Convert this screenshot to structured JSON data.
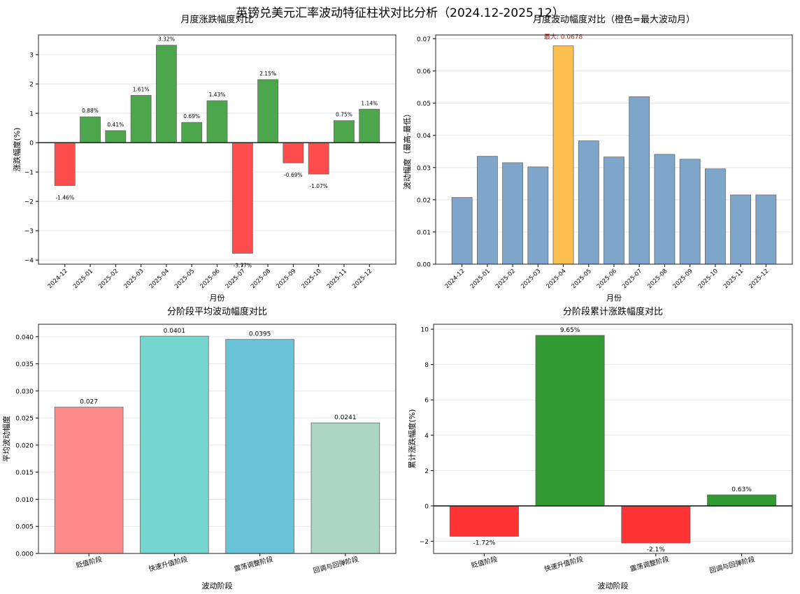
{
  "suptitle": "英镑兑美元汇率波动特征柱状对比分析（2024.12-2025.12）",
  "chart_data": [
    {
      "type": "bar",
      "title": "月度涨跌幅度对比",
      "xlabel": "月份",
      "ylabel": "涨跌幅度(%)",
      "categories": [
        "2024-12",
        "2025-01",
        "2025-02",
        "2025-03",
        "2025-04",
        "2025-05",
        "2025-06",
        "2025-07",
        "2025-08",
        "2025-09",
        "2025-10",
        "2025-11",
        "2025-12"
      ],
      "values": [
        -1.46,
        0.88,
        0.41,
        1.61,
        3.32,
        0.69,
        1.43,
        -3.77,
        2.15,
        -0.69,
        -1.07,
        0.75,
        1.14
      ],
      "data_labels": [
        "-1.46%",
        "0.88%",
        "0.41%",
        "1.61%",
        "3.32%",
        "0.69%",
        "1.43%",
        "-3.77%",
        "2.15%",
        "-0.69%",
        "-1.07%",
        "0.75%",
        "1.14%"
      ],
      "ylim": [
        -4.14,
        3.67
      ],
      "yticks": [
        -4,
        -3,
        -2,
        -1,
        0,
        1,
        2,
        3
      ],
      "tick_rotation": 45,
      "grid": "y",
      "zero_line": true,
      "colors": {
        "positive": "#4ca64c",
        "negative": "#ff4d4d"
      }
    },
    {
      "type": "bar",
      "title": "月度波动幅度对比（橙色=最大波动月）",
      "xlabel": "月份",
      "ylabel": "波动幅度（最高-最低）",
      "categories": [
        "2024-12",
        "2025-01",
        "2025-02",
        "2025-03",
        "2025-04",
        "2025-05",
        "2025-06",
        "2025-07",
        "2025-08",
        "2025-09",
        "2025-10",
        "2025-11",
        "2025-12"
      ],
      "values": [
        0.0207,
        0.0335,
        0.0315,
        0.0302,
        0.0678,
        0.0383,
        0.0333,
        0.052,
        0.0341,
        0.0326,
        0.0296,
        0.0215,
        0.0215
      ],
      "annotation": "最大: 0.0678",
      "highlight_index": 4,
      "ylim": [
        0,
        0.0712
      ],
      "yticks": [
        "0.00",
        "0.01",
        "0.02",
        "0.03",
        "0.04",
        "0.05",
        "0.06",
        "0.07"
      ],
      "tick_rotation": 45,
      "grid": "y",
      "colors": {
        "default": "#7ea6cb",
        "highlight": "#fdbf4f",
        "annotation": "#b22222"
      }
    },
    {
      "type": "bar",
      "title": "分阶段平均波动幅度对比",
      "xlabel": "波动阶段",
      "ylabel": "平均波动幅度",
      "categories": [
        "贬值阶段",
        "快速升值阶段",
        "震荡调整阶段",
        "回调与回弹阶段"
      ],
      "values": [
        0.027,
        0.0401,
        0.0395,
        0.0241
      ],
      "data_labels": [
        "0.027",
        "0.0401",
        "0.0395",
        "0.0241"
      ],
      "ylim": [
        0,
        0.0423
      ],
      "yticks": [
        "0.000",
        "0.005",
        "0.010",
        "0.015",
        "0.020",
        "0.025",
        "0.030",
        "0.035",
        "0.040"
      ],
      "tick_rotation": 15,
      "grid": "y",
      "colors": {
        "bars": [
          "#ff8a8a",
          "#75d6cf",
          "#6ac3d9",
          "#acd5c3"
        ]
      }
    },
    {
      "type": "bar",
      "title": "分阶段累计涨跌幅度对比",
      "xlabel": "波动阶段",
      "ylabel": "累计涨跌幅度(%)",
      "categories": [
        "贬值阶段",
        "快速升值阶段",
        "震荡调整阶段",
        "回调与回弹阶段"
      ],
      "values": [
        -1.72,
        9.65,
        -2.1,
        0.63
      ],
      "data_labels": [
        "-1.72%",
        "9.65%",
        "-2.1%",
        "0.63%"
      ],
      "ylim": [
        -2.69,
        10.28
      ],
      "yticks": [
        -2,
        0,
        2,
        4,
        6,
        8,
        10
      ],
      "tick_rotation": 15,
      "grid": "y",
      "zero_line": true,
      "colors": {
        "positive": "#339933",
        "negative": "#ff3333"
      }
    }
  ]
}
